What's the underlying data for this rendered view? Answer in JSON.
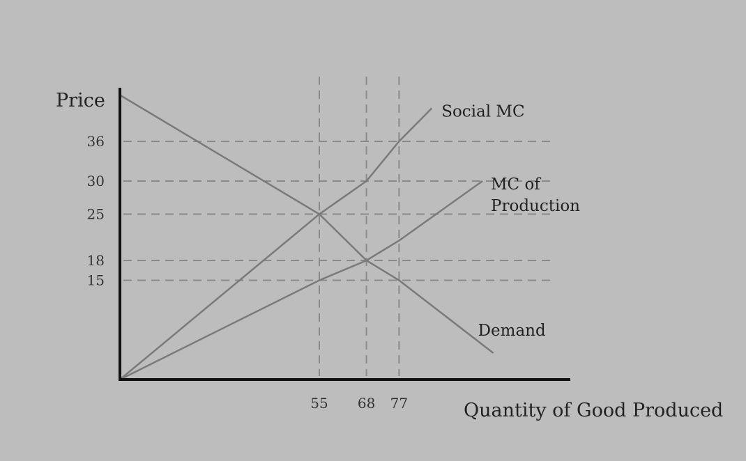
{
  "chart_data": {
    "type": "line",
    "title": "",
    "xlabel": "Quantity of Good Produced",
    "ylabel": "Price",
    "x_ticks": [
      55,
      68,
      77
    ],
    "y_ticks": [
      15,
      18,
      25,
      30,
      36
    ],
    "grid": "dashed reference lines at tick values",
    "series": [
      {
        "name": "Social MC",
        "points": [
          [
            0,
            0
          ],
          [
            55,
            25
          ],
          [
            68,
            30
          ],
          [
            77,
            36
          ],
          [
            86,
            41
          ]
        ]
      },
      {
        "name": "MC of Production",
        "points": [
          [
            0,
            0
          ],
          [
            55,
            15
          ],
          [
            68,
            18
          ],
          [
            77,
            21
          ],
          [
            100,
            30
          ]
        ]
      },
      {
        "name": "Demand",
        "points": [
          [
            0,
            43
          ],
          [
            55,
            25
          ],
          [
            68,
            18
          ],
          [
            77,
            15
          ],
          [
            103,
            4
          ]
        ]
      }
    ]
  }
}
